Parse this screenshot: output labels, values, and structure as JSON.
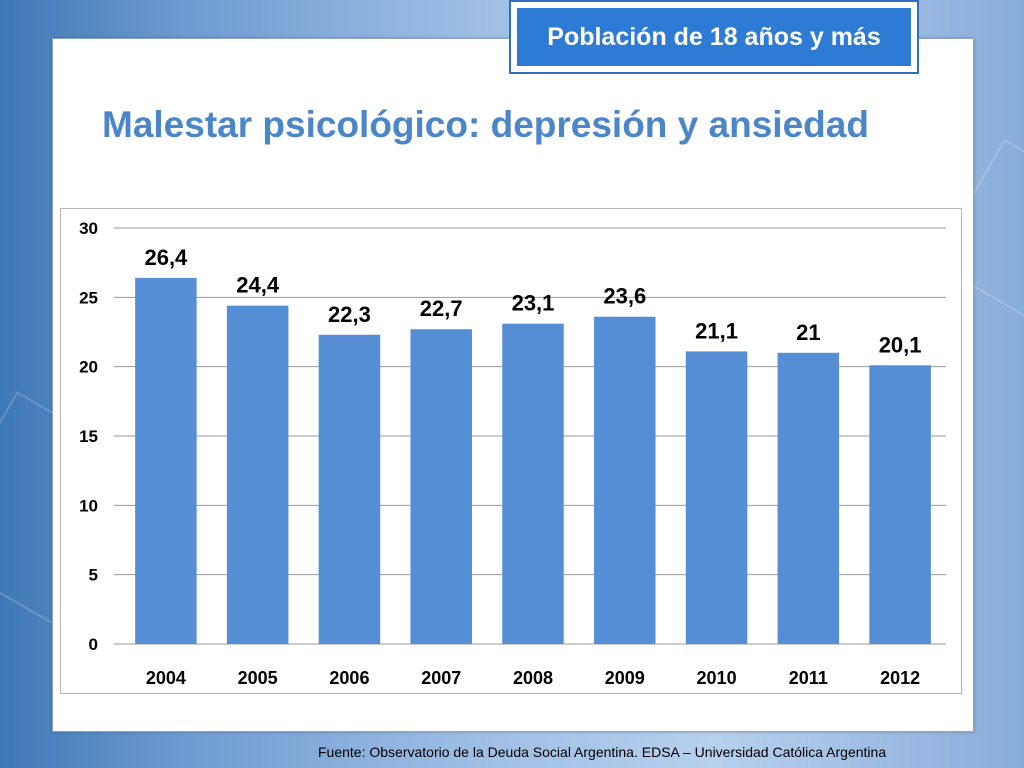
{
  "header": {
    "badge": "Población de 18 años y más",
    "title": "Malestar psicológico: depresión y ansiedad"
  },
  "footer": {
    "source": "Fuente:  Observatorio de  la Deuda Social Argentina. EDSA  – Universidad Católica Argentina"
  },
  "colors": {
    "bar": "#558ed5",
    "badge": "#2e7bd6",
    "title": "#4a86c8",
    "grid": "#999999"
  },
  "chart_data": {
    "type": "bar",
    "categories": [
      "2004",
      "2005",
      "2006",
      "2007",
      "2008",
      "2009",
      "2010",
      "2011",
      "2012"
    ],
    "values": [
      26.4,
      24.4,
      22.3,
      22.7,
      23.1,
      23.6,
      21.1,
      21,
      20.1
    ],
    "data_labels": [
      "26,4",
      "24,4",
      "22,3",
      "22,7",
      "23,1",
      "23,6",
      "21,1",
      "21",
      "20,1"
    ],
    "y_ticks": [
      "0",
      "5",
      "10",
      "15",
      "20",
      "25",
      "30"
    ],
    "ylim": [
      0,
      30
    ],
    "grid": true,
    "legend": "none"
  }
}
